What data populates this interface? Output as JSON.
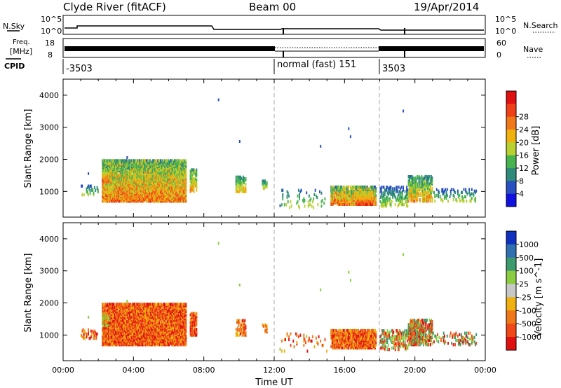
{
  "header": {
    "station": "Clyde River (fitACF)",
    "beam": "Beam 00",
    "date": "19/Apr/2014"
  },
  "top_panels": {
    "nsky_label": "N.Sky",
    "nsky_ticks": [
      "10^5",
      "10^0"
    ],
    "nsearch_label": "N.Search",
    "nsearch_ticks": [
      "10^5",
      "10^0"
    ],
    "freq_label_1": "Freq.",
    "freq_label_2": "[MHz]",
    "freq_ticks": [
      "18",
      "8"
    ],
    "nave_label": "Nave",
    "nave_ticks": [
      "60",
      "0"
    ],
    "cpid_label": "CPID",
    "cpid_segments": [
      {
        "label": "-3503",
        "start_hour": 0
      },
      {
        "label": "normal (fast) 151",
        "start_hour": 12
      },
      {
        "label": "3503",
        "start_hour": 18
      }
    ]
  },
  "chart_data": [
    {
      "type": "heatmap",
      "name": "power-panel",
      "ylabel": "Slant Range [km]",
      "xlim": [
        0,
        24
      ],
      "ylim": [
        200,
        4500
      ],
      "yticks": [
        "1000",
        "2000",
        "3000",
        "4000"
      ],
      "colorbar_label": "Power [dB]",
      "colorbar_ticks": [
        "4",
        "8",
        "12",
        "16",
        "20",
        "24",
        "28"
      ],
      "colorbar_colors": [
        "#1010e0",
        "#2850c0",
        "#2f8a7a",
        "#48b450",
        "#b8d030",
        "#f0b010",
        "#f07818",
        "#f04018",
        "#e01010"
      ]
    },
    {
      "type": "heatmap",
      "name": "velocity-panel",
      "ylabel": "Slant Range [km]",
      "xlabel": "Time UT",
      "xlim": [
        0,
        24
      ],
      "ylim": [
        200,
        4500
      ],
      "yticks": [
        "1000",
        "2000",
        "3000",
        "4000"
      ],
      "xticks": [
        "00:00",
        "04:00",
        "08:00",
        "12:00",
        "16:00",
        "20:00",
        "00:00"
      ],
      "colorbar_label": "Velocity [m s^-1]",
      "colorbar_ticks": [
        "1000",
        "500",
        "100",
        "25",
        "-25",
        "-100",
        "-500",
        "-1000"
      ],
      "colorbar_colors": [
        "#1030c0",
        "#3070b0",
        "#3c9a6e",
        "#8ccc40",
        "#c8c8c8",
        "#f0b010",
        "#f07818",
        "#f04818",
        "#e01010"
      ]
    }
  ]
}
